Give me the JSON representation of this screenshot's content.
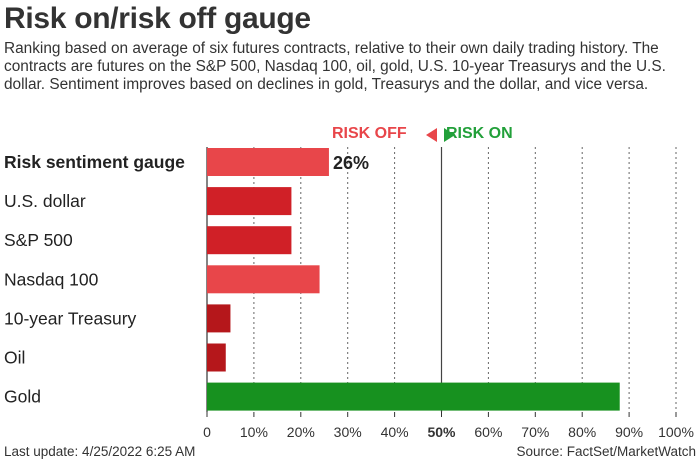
{
  "title": "Risk on/risk off gauge",
  "subtitle": "Ranking based on average of six futures contracts, relative to their own daily trading history. The contracts are futures on the S&P 500, Nasdaq 100, oil, gold, U.S. 10-year Treasurys and the U.S. dollar. Sentiment improves based on declines in gold, Treasurys and the dollar, and vice versa.",
  "legend": {
    "risk_off": "RISK OFF",
    "risk_on": "RISK ON"
  },
  "colors": {
    "light_red": "#e8464a",
    "red": "#d02027",
    "dark_red": "#b5171b",
    "green": "#17911f",
    "text": "#222222",
    "grid": "#555555"
  },
  "footer": {
    "last_update": "Last update: 4/25/2022 6:25 AM",
    "source": "Source: FactSet/MarketWatch"
  },
  "chart_data": {
    "type": "bar",
    "orientation": "horizontal",
    "categories": [
      "Risk sentiment gauge",
      "U.S. dollar",
      "S&P 500",
      "Nasdaq 100",
      "10-year Treasury",
      "Oil",
      "Gold"
    ],
    "values": [
      26,
      18,
      18,
      24,
      5,
      4,
      88
    ],
    "bar_colors": [
      "#e8464a",
      "#d02027",
      "#d02027",
      "#e8464a",
      "#b5171b",
      "#b5171b",
      "#17911f"
    ],
    "data_labels": {
      "Risk sentiment gauge": "26%"
    },
    "x_ticks": [
      "0",
      "10%",
      "20%",
      "30%",
      "40%",
      "50%",
      "60%",
      "70%",
      "80%",
      "90%",
      "100%"
    ],
    "xlim": [
      0,
      100
    ],
    "grid": "vertical dotted, solid at 50%"
  }
}
